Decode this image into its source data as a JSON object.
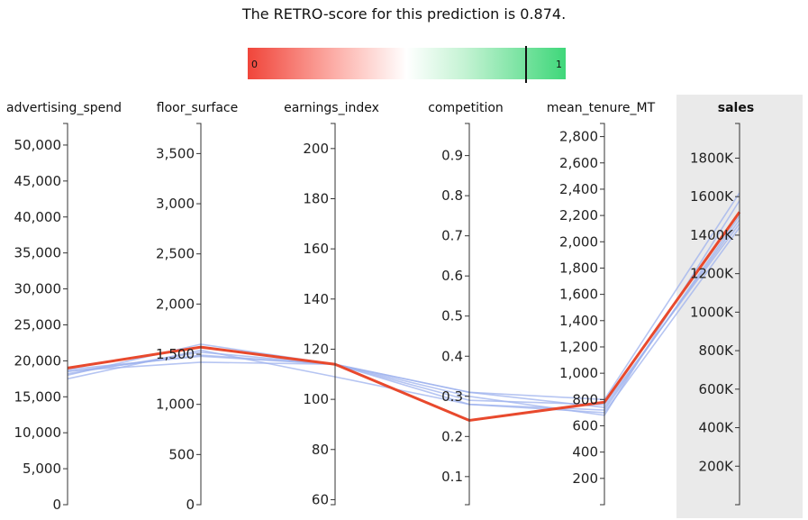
{
  "title": "The RETRO-score for this prediction is 0.874.",
  "score": 0.874,
  "colorbar": {
    "min_label": "0",
    "max_label": "1"
  },
  "colors": {
    "highlight": "#e8492d",
    "neighbors": "#9db1ee",
    "target_bg": "#eaeaea"
  },
  "chart_data": {
    "type": "parallel_coordinates",
    "axes": [
      {
        "name": "advertising_spend",
        "range": [
          0,
          53000
        ],
        "ticks": [
          0,
          5000,
          10000,
          15000,
          20000,
          25000,
          30000,
          35000,
          40000,
          45000,
          50000
        ],
        "tick_labels": [
          "0",
          "5,000",
          "10,000",
          "15,000",
          "20,000",
          "25,000",
          "30,000",
          "35,000",
          "40,000",
          "45,000",
          "50,000"
        ]
      },
      {
        "name": "floor_surface",
        "range": [
          0,
          3800
        ],
        "ticks": [
          0,
          500,
          1000,
          1500,
          2000,
          2500,
          3000,
          3500
        ],
        "tick_labels": [
          "0",
          "500",
          "1,000",
          "1,500",
          "2,000",
          "2,500",
          "3,000",
          "3,500"
        ]
      },
      {
        "name": "earnings_index",
        "range": [
          58,
          210
        ],
        "ticks": [
          60,
          80,
          100,
          120,
          140,
          160,
          180,
          200
        ],
        "tick_labels": [
          "60",
          "80",
          "100",
          "120",
          "140",
          "160",
          "180",
          "200"
        ]
      },
      {
        "name": "competition",
        "range": [
          0.03,
          0.98
        ],
        "ticks": [
          0.1,
          0.2,
          0.3,
          0.4,
          0.5,
          0.6,
          0.7,
          0.8,
          0.9
        ],
        "tick_labels": [
          "0.1",
          "0.2",
          "0.3",
          "0.4",
          "0.5",
          "0.6",
          "0.7",
          "0.8",
          "0.9"
        ]
      },
      {
        "name": "mean_tenure_MT",
        "range": [
          0,
          2900
        ],
        "ticks": [
          200,
          400,
          600,
          800,
          1000,
          1200,
          1400,
          1600,
          1800,
          2000,
          2200,
          2400,
          2600,
          2800
        ],
        "tick_labels": [
          "200",
          "400",
          "600",
          "800",
          "1,000",
          "1,200",
          "1,400",
          "1,600",
          "1,800",
          "2,000",
          "2,200",
          "2,400",
          "2,600",
          "2,800"
        ]
      },
      {
        "name": "sales",
        "target": true,
        "range": [
          0,
          1980000
        ],
        "ticks": [
          200000,
          400000,
          600000,
          800000,
          1000000,
          1200000,
          1400000,
          1600000,
          1800000
        ],
        "tick_labels": [
          "200K",
          "400K",
          "600K",
          "800K",
          "1000K",
          "1200K",
          "1400K",
          "1600K",
          "1800K"
        ]
      }
    ],
    "highlight": {
      "values": [
        19000,
        1570,
        114,
        0.24,
        780,
        1520000
      ]
    },
    "neighbors": [
      {
        "values": [
          18500,
          1490,
          114,
          0.28,
          700,
          1440000
        ]
      },
      {
        "values": [
          17500,
          1540,
          109,
          0.28,
          720,
          1500000
        ]
      },
      {
        "values": [
          18000,
          1600,
          114,
          0.29,
          760,
          1460000
        ]
      },
      {
        "values": [
          18800,
          1480,
          114,
          0.3,
          680,
          1580000
        ]
      },
      {
        "values": [
          18200,
          1520,
          114,
          0.31,
          740,
          1480000
        ]
      },
      {
        "values": [
          18600,
          1420,
          114,
          0.31,
          800,
          1620000
        ]
      }
    ]
  }
}
